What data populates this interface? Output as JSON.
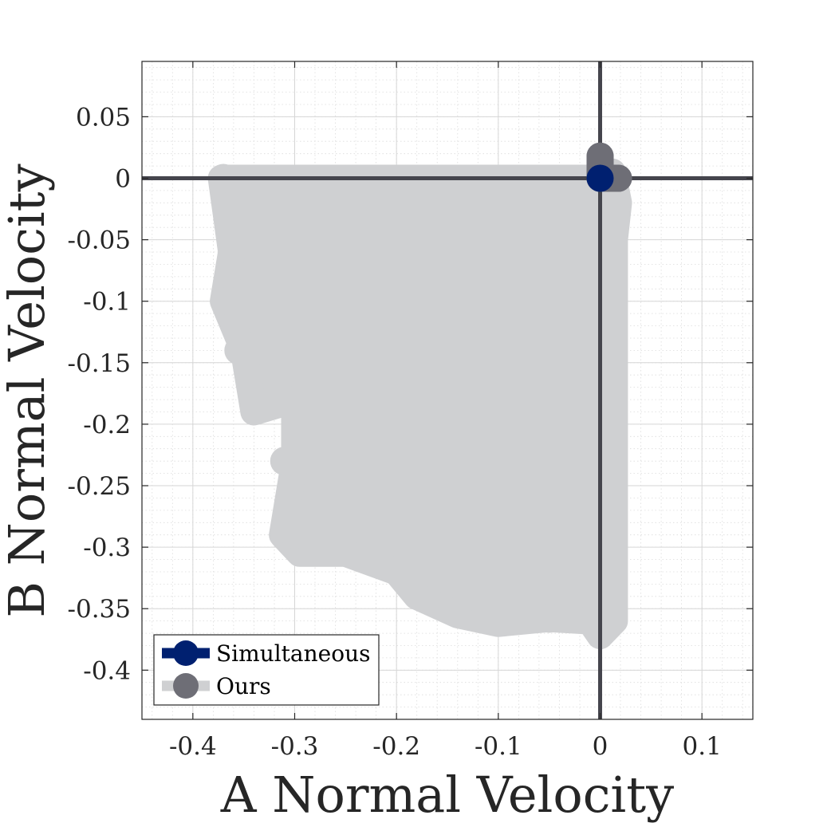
{
  "chart_data": {
    "type": "scatter",
    "xlabel": "A Normal Velocity",
    "ylabel": "B Normal Velocity",
    "xlim": [
      -0.45,
      0.15
    ],
    "ylim": [
      -0.44,
      0.095
    ],
    "xticks": [
      -0.4,
      -0.3,
      -0.2,
      -0.1,
      0,
      0.1
    ],
    "xtick_labels": [
      "-0.4",
      "-0.3",
      "-0.2",
      "-0.1",
      "0",
      "0.1"
    ],
    "yticks": [
      0.05,
      0,
      -0.05,
      -0.1,
      -0.15,
      -0.2,
      -0.25,
      -0.3,
      -0.35,
      -0.4
    ],
    "ytick_labels": [
      "0.05",
      "0",
      "-0.05",
      "-0.1",
      "-0.15",
      "-0.2",
      "-0.25",
      "-0.3",
      "-0.35",
      "-0.4"
    ],
    "grid": "major and minor",
    "legend_position": "bottom-left",
    "reference_lines": {
      "x": 0,
      "y": 0,
      "color": "#45454d"
    },
    "series": [
      {
        "name": "Ours",
        "marker_color": "#6e6e76",
        "line_color": "#cfd0d2",
        "region_outline": [
          [
            -0.372,
            0.0
          ],
          [
            -0.01,
            0.0
          ],
          [
            0.012,
            0.005
          ],
          [
            0.018,
            -0.02
          ],
          [
            0.014,
            -0.05
          ],
          [
            0.014,
            -0.36
          ],
          [
            0.0,
            -0.372
          ],
          [
            -0.01,
            -0.36
          ],
          [
            -0.05,
            -0.358
          ],
          [
            -0.1,
            -0.362
          ],
          [
            -0.14,
            -0.355
          ],
          [
            -0.18,
            -0.34
          ],
          [
            -0.2,
            -0.32
          ],
          [
            -0.25,
            -0.305
          ],
          [
            -0.295,
            -0.305
          ],
          [
            -0.312,
            -0.29
          ],
          [
            -0.3,
            -0.23
          ],
          [
            -0.3,
            -0.18
          ],
          [
            -0.34,
            -0.19
          ],
          [
            -0.35,
            -0.14
          ],
          [
            -0.37,
            -0.1
          ],
          [
            -0.362,
            -0.06
          ],
          [
            -0.372,
            0.0
          ]
        ],
        "points": [
          [
            0.0,
            0.018
          ],
          [
            0.0,
            0.0
          ],
          [
            0.018,
            0.0
          ],
          [
            -0.37,
            0.0
          ],
          [
            -0.355,
            -0.05
          ],
          [
            -0.365,
            -0.1
          ],
          [
            -0.355,
            -0.14
          ],
          [
            -0.34,
            -0.185
          ],
          [
            -0.31,
            -0.23
          ],
          [
            -0.3,
            -0.29
          ],
          [
            -0.14,
            -0.352
          ],
          [
            -0.05,
            -0.358
          ],
          [
            0.0,
            -0.368
          ]
        ]
      },
      {
        "name": "Simultaneous",
        "marker_color": "#002070",
        "line_color": "#002070",
        "points": [
          [
            0.0,
            0.0
          ]
        ]
      }
    ]
  }
}
